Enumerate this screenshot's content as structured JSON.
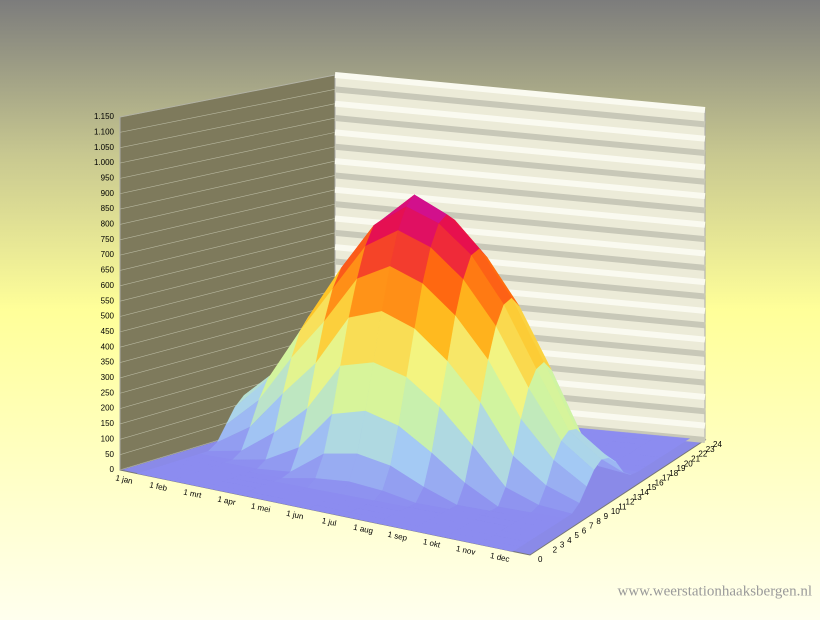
{
  "chart_data": {
    "type": "surface3d",
    "categories": [
      "1 jan",
      "1 feb",
      "1 mrt",
      "1 apr",
      "1 mei",
      "1 jun",
      "1 jul",
      "1 aug",
      "1 sep",
      "1 okt",
      "1 nov",
      "1 dec"
    ],
    "hour_ticks": [
      0,
      2,
      3,
      4,
      5,
      6,
      7,
      8,
      9,
      10,
      11,
      12,
      13,
      14,
      15,
      16,
      17,
      18,
      19,
      20,
      21,
      22,
      23,
      24
    ],
    "hlim": [
      0,
      24
    ],
    "z": [
      [
        0,
        0,
        0,
        0,
        0,
        0,
        0,
        0,
        0,
        20,
        70,
        120,
        150,
        140,
        100,
        50,
        10,
        0,
        0,
        0,
        0,
        0,
        0,
        0,
        0
      ],
      [
        0,
        0,
        0,
        0,
        0,
        0,
        0,
        0,
        20,
        90,
        170,
        230,
        250,
        240,
        190,
        120,
        50,
        10,
        0,
        0,
        0,
        0,
        0,
        0,
        0
      ],
      [
        0,
        0,
        0,
        0,
        0,
        0,
        0,
        20,
        100,
        220,
        330,
        410,
        450,
        440,
        380,
        280,
        170,
        70,
        10,
        0,
        0,
        0,
        0,
        0,
        0
      ],
      [
        0,
        0,
        0,
        0,
        0,
        0,
        10,
        80,
        200,
        340,
        470,
        570,
        630,
        650,
        610,
        520,
        390,
        250,
        120,
        30,
        0,
        0,
        0,
        0,
        0
      ],
      [
        0,
        0,
        0,
        0,
        0,
        20,
        90,
        210,
        360,
        510,
        630,
        730,
        790,
        800,
        760,
        670,
        540,
        390,
        240,
        110,
        30,
        0,
        0,
        0,
        0
      ],
      [
        0,
        0,
        0,
        0,
        0,
        30,
        110,
        240,
        390,
        550,
        690,
        800,
        870,
        900,
        860,
        770,
        640,
        480,
        320,
        170,
        60,
        10,
        0,
        0,
        0
      ],
      [
        0,
        0,
        0,
        0,
        0,
        20,
        90,
        210,
        360,
        510,
        650,
        760,
        830,
        850,
        820,
        730,
        600,
        450,
        300,
        150,
        50,
        0,
        0,
        0,
        0
      ],
      [
        0,
        0,
        0,
        0,
        0,
        0,
        40,
        140,
        280,
        420,
        560,
        670,
        740,
        750,
        710,
        620,
        490,
        340,
        190,
        70,
        10,
        0,
        0,
        0,
        0
      ],
      [
        0,
        0,
        0,
        0,
        0,
        0,
        0,
        60,
        170,
        300,
        430,
        530,
        590,
        600,
        560,
        470,
        340,
        200,
        80,
        10,
        0,
        0,
        0,
        0,
        0
      ],
      [
        0,
        0,
        0,
        0,
        0,
        0,
        0,
        0,
        50,
        140,
        250,
        340,
        390,
        400,
        360,
        270,
        160,
        60,
        10,
        0,
        0,
        0,
        0,
        0,
        0
      ],
      [
        0,
        0,
        0,
        0,
        0,
        0,
        0,
        0,
        10,
        60,
        130,
        180,
        200,
        190,
        140,
        80,
        20,
        0,
        0,
        0,
        0,
        0,
        0,
        0,
        0
      ],
      [
        0,
        0,
        0,
        0,
        0,
        0,
        0,
        0,
        0,
        20,
        60,
        100,
        120,
        110,
        80,
        30,
        5,
        0,
        0,
        0,
        0,
        0,
        0,
        0,
        0
      ]
    ],
    "zlim": [
      0,
      1150
    ],
    "zticks": [
      0,
      50,
      100,
      150,
      200,
      250,
      300,
      350,
      400,
      450,
      500,
      550,
      600,
      650,
      700,
      750,
      800,
      850,
      900,
      950,
      {
        "value": 1000,
        "label": "1.000"
      },
      {
        "value": 1050,
        "label": "1.050"
      },
      {
        "value": 1100,
        "label": "1.100"
      },
      {
        "value": 1150,
        "label": "1.150"
      }
    ],
    "grid": true,
    "colors": [
      "#8c8cf0",
      "#a6d0f4",
      "#ccf4a4",
      "#f4f480",
      "#ffc020",
      "#ff6a10",
      "#e8104a",
      "#c010c0"
    ],
    "watermark": "www.weerstationhaaksbergen.nl"
  }
}
